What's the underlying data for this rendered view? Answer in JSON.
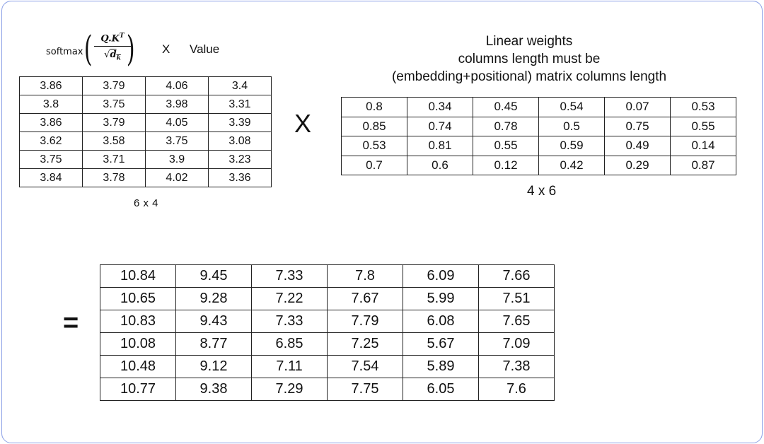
{
  "formula": {
    "func": "softmax",
    "numerator": "Q.K",
    "numerator_sup": "T",
    "sqrt_symbol": "√",
    "denominator": "d",
    "denominator_sub": "k",
    "times": "X",
    "value_label": "Value"
  },
  "matrix1": {
    "rows": [
      [
        "3.86",
        "3.79",
        "4.06",
        "3.4"
      ],
      [
        "3.8",
        "3.75",
        "3.98",
        "3.31"
      ],
      [
        "3.86",
        "3.79",
        "4.05",
        "3.39"
      ],
      [
        "3.62",
        "3.58",
        "3.75",
        "3.08"
      ],
      [
        "3.75",
        "3.71",
        "3.9",
        "3.23"
      ],
      [
        "3.84",
        "3.78",
        "4.02",
        "3.36"
      ]
    ],
    "dims": "6 x 4"
  },
  "multiply_symbol": "X",
  "linear_weights": {
    "caption_lines": [
      "Linear weights",
      "columns length must be",
      "(embedding+positional) matrix columns length"
    ],
    "rows": [
      [
        "0.8",
        "0.34",
        "0.45",
        "0.54",
        "0.07",
        "0.53"
      ],
      [
        "0.85",
        "0.74",
        "0.78",
        "0.5",
        "0.75",
        "0.55"
      ],
      [
        "0.53",
        "0.81",
        "0.55",
        "0.59",
        "0.49",
        "0.14"
      ],
      [
        "0.7",
        "0.6",
        "0.12",
        "0.42",
        "0.29",
        "0.87"
      ]
    ],
    "dims": "4 x 6"
  },
  "equals_symbol": "=",
  "result": {
    "rows": [
      [
        "10.84",
        "9.45",
        "7.33",
        "7.8",
        "6.09",
        "7.66"
      ],
      [
        "10.65",
        "9.28",
        "7.22",
        "7.67",
        "5.99",
        "7.51"
      ],
      [
        "10.83",
        "9.43",
        "7.33",
        "7.79",
        "6.08",
        "7.65"
      ],
      [
        "10.08",
        "8.77",
        "6.85",
        "7.25",
        "5.67",
        "7.09"
      ],
      [
        "10.48",
        "9.12",
        "7.11",
        "7.54",
        "5.89",
        "7.38"
      ],
      [
        "10.77",
        "9.38",
        "7.29",
        "7.75",
        "6.05",
        "7.6"
      ]
    ]
  },
  "colors": {
    "frame_border": "#8a9fe6",
    "grid": "#222222"
  }
}
